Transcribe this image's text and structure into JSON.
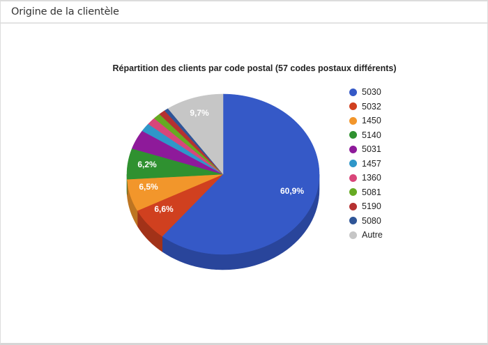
{
  "panel": {
    "title": "Origine de la clientèle"
  },
  "chart_data": {
    "type": "pie",
    "title": "Répartition des clients par code postal (57 codes postaux différents)",
    "style": "3d",
    "legend_position": "right",
    "categories": [
      "5030",
      "5032",
      "1450",
      "5140",
      "5031",
      "1457",
      "1360",
      "5081",
      "5190",
      "5080",
      "Autre"
    ],
    "values": [
      60.9,
      6.6,
      6.5,
      6.2,
      3.9,
      1.7,
      1.5,
      1.2,
      1.1,
      0.7,
      9.7
    ],
    "colors": [
      "#3559c7",
      "#d0401f",
      "#f2962b",
      "#2f9130",
      "#8e1a9a",
      "#2f97c9",
      "#d9467a",
      "#66aa22",
      "#b53131",
      "#2f5597",
      "#c6c6c6"
    ],
    "slice_labels": [
      "60,9%",
      "6,6%",
      "6,5%",
      "6,2%",
      "",
      "",
      "",
      "",
      "",
      "",
      "9,7%"
    ],
    "start_angle": "12 o'clock, clockwise"
  },
  "legend": {
    "items": [
      {
        "label": "5030",
        "color": "#3559c7"
      },
      {
        "label": "5032",
        "color": "#d0401f"
      },
      {
        "label": "1450",
        "color": "#f2962b"
      },
      {
        "label": "5140",
        "color": "#2f9130"
      },
      {
        "label": "5031",
        "color": "#8e1a9a"
      },
      {
        "label": "1457",
        "color": "#2f97c9"
      },
      {
        "label": "1360",
        "color": "#d9467a"
      },
      {
        "label": "5081",
        "color": "#66aa22"
      },
      {
        "label": "5190",
        "color": "#b53131"
      },
      {
        "label": "5080",
        "color": "#2f5597"
      },
      {
        "label": "Autre",
        "color": "#c6c6c6"
      }
    ]
  }
}
